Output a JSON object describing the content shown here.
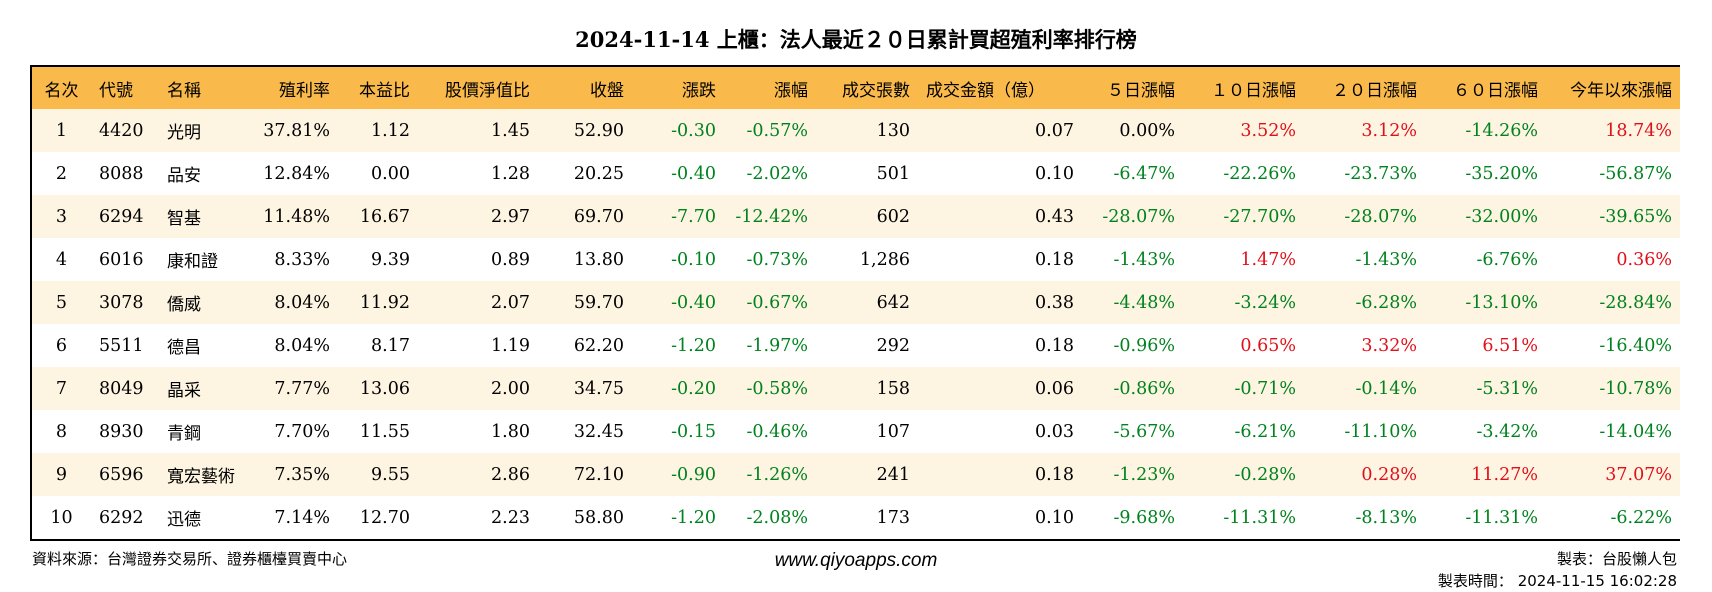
{
  "title": "2024-11-14 上櫃：法人最近２０日累計買超殖利率排行榜",
  "columns": [
    "名次",
    "代號",
    "名稱",
    "殖利率",
    "本益比",
    "股價淨值比",
    "收盤",
    "漲跌",
    "漲幅",
    "成交張數",
    "成交金額（億）",
    "５日漲幅",
    "１０日漲幅",
    "２０日漲幅",
    "６０日漲幅",
    "今年以來漲幅"
  ],
  "rows": [
    [
      "1",
      "4420",
      "光明",
      "37.81%",
      "1.12",
      "1.45",
      "52.90",
      "-0.30",
      "-0.57%",
      "130",
      "0.07",
      "0.00%",
      "3.52%",
      "3.12%",
      "-14.26%",
      "18.74%"
    ],
    [
      "2",
      "8088",
      "品安",
      "12.84%",
      "0.00",
      "1.28",
      "20.25",
      "-0.40",
      "-2.02%",
      "501",
      "0.10",
      "-6.47%",
      "-22.26%",
      "-23.73%",
      "-35.20%",
      "-56.87%"
    ],
    [
      "3",
      "6294",
      "智基",
      "11.48%",
      "16.67",
      "2.97",
      "69.70",
      "-7.70",
      "-12.42%",
      "602",
      "0.43",
      "-28.07%",
      "-27.70%",
      "-28.07%",
      "-32.00%",
      "-39.65%"
    ],
    [
      "4",
      "6016",
      "康和證",
      "8.33%",
      "9.39",
      "0.89",
      "13.80",
      "-0.10",
      "-0.73%",
      "1,286",
      "0.18",
      "-1.43%",
      "1.47%",
      "-1.43%",
      "-6.76%",
      "0.36%"
    ],
    [
      "5",
      "3078",
      "僑威",
      "8.04%",
      "11.92",
      "2.07",
      "59.70",
      "-0.40",
      "-0.67%",
      "642",
      "0.38",
      "-4.48%",
      "-3.24%",
      "-6.28%",
      "-13.10%",
      "-28.84%"
    ],
    [
      "6",
      "5511",
      "德昌",
      "8.04%",
      "8.17",
      "1.19",
      "62.20",
      "-1.20",
      "-1.97%",
      "292",
      "0.18",
      "-0.96%",
      "0.65%",
      "3.32%",
      "6.51%",
      "-16.40%"
    ],
    [
      "7",
      "8049",
      "晶采",
      "7.77%",
      "13.06",
      "2.00",
      "34.75",
      "-0.20",
      "-0.58%",
      "158",
      "0.06",
      "-0.86%",
      "-0.71%",
      "-0.14%",
      "-5.31%",
      "-10.78%"
    ],
    [
      "8",
      "8930",
      "青鋼",
      "7.70%",
      "11.55",
      "1.80",
      "32.45",
      "-0.15",
      "-0.46%",
      "107",
      "0.03",
      "-5.67%",
      "-6.21%",
      "-11.10%",
      "-3.42%",
      "-14.04%"
    ],
    [
      "9",
      "6596",
      "寬宏藝術",
      "7.35%",
      "9.55",
      "2.86",
      "72.10",
      "-0.90",
      "-1.26%",
      "241",
      "0.18",
      "-1.23%",
      "-0.28%",
      "0.28%",
      "11.27%",
      "37.07%"
    ],
    [
      "10",
      "6292",
      "迅德",
      "7.14%",
      "12.70",
      "2.23",
      "58.80",
      "-1.20",
      "-2.08%",
      "173",
      "0.10",
      "-9.68%",
      "-11.31%",
      "-8.13%",
      "-11.31%",
      "-6.22%"
    ]
  ],
  "footer": {
    "source": "資料來源：台灣證券交易所、證券櫃檯買賣中心",
    "website": "www.qiyoapps.com",
    "maker": "製表：台股懶人包",
    "made_time": "製表時間： 2024-11-15 16:02:28"
  },
  "colors": {
    "header_bg": "#f9b94b",
    "row_alt_bg": "#fdf4e2",
    "up": "#e0101a",
    "down": "#00821e"
  }
}
